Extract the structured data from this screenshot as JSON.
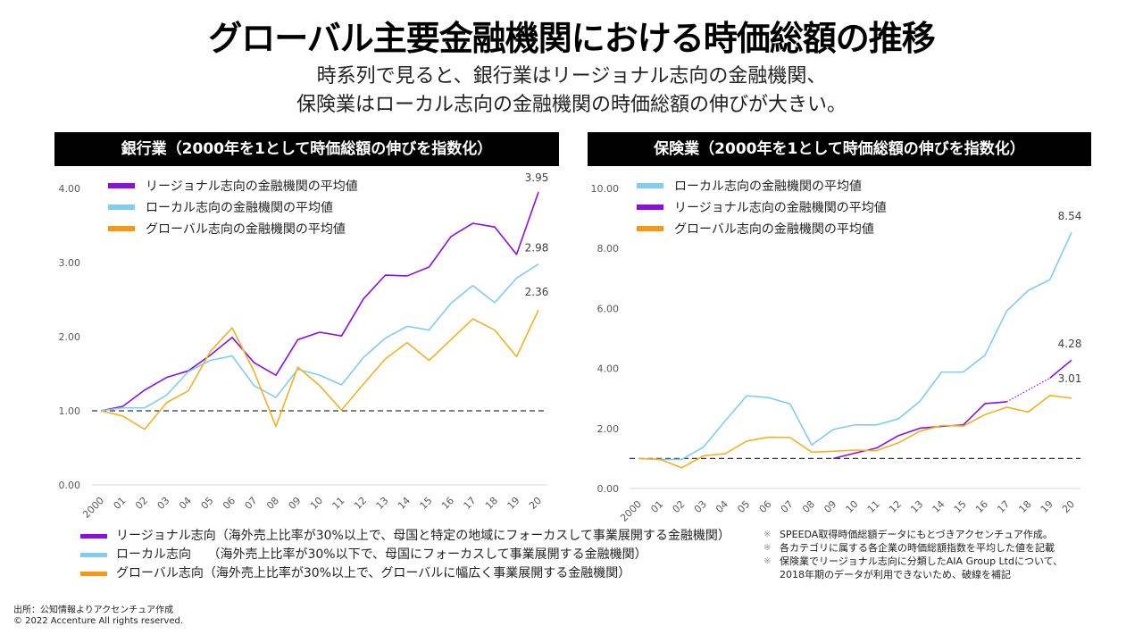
{
  "title": "グローバル主要金融機関における時価総額の推移",
  "subtitle": [
    "時系列で見ると、銀行業はリージョナル志向の金融機関、",
    "保険業はローカル志向の金融機関の時価総額の伸びが大きい。"
  ],
  "colors": {
    "regional": "#8A0FE0",
    "local": "#7FCDF2",
    "global": "#F2B124",
    "global_legend": "#F39A12",
    "baseline": "#333333"
  },
  "chart_data": [
    {
      "type": "line",
      "title": "銀行業（2000年を1として時価総額の伸びを指数化）",
      "xlabel": "",
      "ylabel": "",
      "categories": [
        "2000",
        "01",
        "02",
        "03",
        "04",
        "05",
        "06",
        "07",
        "08",
        "09",
        "10",
        "11",
        "12",
        "13",
        "14",
        "15",
        "16",
        "17",
        "18",
        "19",
        "20"
      ],
      "yticks": [
        "0.00",
        "1.00",
        "2.00",
        "3.00",
        "4.00"
      ],
      "ylim": [
        0,
        4
      ],
      "baseline": 1.0,
      "legend_position": "top-left",
      "series": [
        {
          "key": "regional",
          "name": "リージョナル志向の金融機関の平均値",
          "end_label": "3.95",
          "values": [
            1.0,
            1.06,
            1.28,
            1.45,
            1.54,
            1.75,
            1.99,
            1.65,
            1.48,
            1.96,
            2.06,
            2.01,
            2.51,
            2.83,
            2.82,
            2.94,
            3.35,
            3.53,
            3.48,
            3.11,
            3.95
          ]
        },
        {
          "key": "local",
          "name": "ローカル志向の金融機関の平均値",
          "end_label": "2.98",
          "values": [
            1.0,
            1.04,
            1.04,
            1.21,
            1.53,
            1.68,
            1.74,
            1.34,
            1.18,
            1.56,
            1.48,
            1.35,
            1.72,
            1.98,
            2.14,
            2.09,
            2.45,
            2.69,
            2.46,
            2.79,
            2.98
          ]
        },
        {
          "key": "global",
          "name": "グローバル志向の金融機関の平均値",
          "end_label": "2.36",
          "values": [
            1.0,
            0.93,
            0.75,
            1.11,
            1.27,
            1.8,
            2.12,
            1.53,
            0.79,
            1.59,
            1.34,
            1.01,
            1.36,
            1.7,
            1.92,
            1.68,
            1.96,
            2.24,
            2.09,
            1.73,
            2.36
          ]
        }
      ]
    },
    {
      "type": "line",
      "title": "保険業（2000年を1として時価総額の伸びを指数化）",
      "xlabel": "",
      "ylabel": "",
      "categories": [
        "2000",
        "01",
        "02",
        "03",
        "04",
        "05",
        "06",
        "07",
        "08",
        "09",
        "10",
        "11",
        "12",
        "13",
        "14",
        "15",
        "16",
        "17",
        "18",
        "19",
        "20"
      ],
      "yticks": [
        "0.00",
        "2.00",
        "4.00",
        "6.00",
        "8.00",
        "10.00"
      ],
      "ylim": [
        0,
        10
      ],
      "baseline": 1.0,
      "legend_position": "top-left",
      "series": [
        {
          "key": "local",
          "name": "ローカル志向の金融機関の平均値",
          "end_label": "8.54",
          "values": [
            1.0,
            0.97,
            0.97,
            1.38,
            2.25,
            3.09,
            3.03,
            2.82,
            1.45,
            1.97,
            2.12,
            2.12,
            2.32,
            2.91,
            3.88,
            3.88,
            4.44,
            5.91,
            6.6,
            6.96,
            8.54
          ]
        },
        {
          "key": "regional",
          "name": "リージョナル志向の金融機関の平均値",
          "end_label": "4.28",
          "values": [
            null,
            null,
            null,
            null,
            null,
            null,
            null,
            null,
            null,
            1.0,
            1.18,
            1.35,
            1.76,
            2.01,
            2.07,
            2.12,
            2.83,
            2.89,
            null,
            3.68,
            4.28
          ],
          "dotted_gap": [
            17,
            19
          ]
        },
        {
          "key": "global",
          "name": "グローバル志向の金融機関の平均値",
          "end_label": "3.01",
          "values": [
            1.0,
            0.97,
            0.69,
            1.09,
            1.16,
            1.58,
            1.71,
            1.7,
            1.21,
            1.24,
            1.28,
            1.26,
            1.52,
            1.91,
            2.1,
            2.08,
            2.46,
            2.71,
            2.55,
            3.1,
            3.01
          ]
        }
      ]
    }
  ],
  "bottom_legend": [
    {
      "key": "regional",
      "text": "リージョナル志向（海外売上比率が30%以上で、母国と特定の地域にフォーカスして事業展開する金融機関）"
    },
    {
      "key": "local",
      "text": "ローカル志向　 （海外売上比率が30%以下で、母国にフォーカスして事業展開する金融機関）"
    },
    {
      "key": "global",
      "text": "グローバル志向（海外売上比率が30%以上で、グローバルに幅広く事業展開する金融機関）"
    }
  ],
  "notes": {
    "mark": "※",
    "items": [
      "SPEEDA取得時価総額データにもとづきアクセンチュア作成。",
      "各カテゴリに属する各企業の時価総額指数を平均した値を記載",
      "保険業でリージョナル志向に分類したAIA Group Ltdについて、\n2018年期のデータが利用できないため、破線を補記"
    ]
  },
  "source": "出所：公知情報よりアクセンチュア作成",
  "copyright": "© 2022 Accenture  All rights reserved."
}
